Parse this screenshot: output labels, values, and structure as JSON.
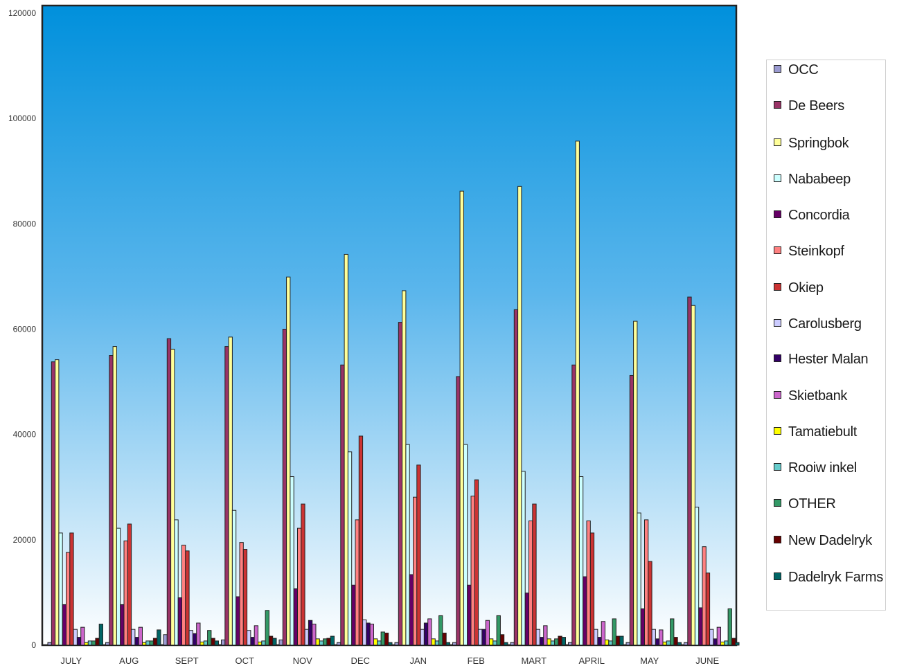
{
  "chart_data": {
    "type": "bar",
    "categories": [
      "JULY",
      "AUG",
      "SEPT",
      "OCT",
      "NOV",
      "DEC",
      "JAN",
      "FEB",
      "MART",
      "APRIL",
      "MAY",
      "JUNE"
    ],
    "ylim": [
      0,
      120000
    ],
    "yticks": [
      0,
      20000,
      40000,
      60000,
      80000,
      100000,
      120000
    ],
    "ytick_labels": [
      "0",
      "20000",
      "40000",
      "60000",
      "80000",
      "100000",
      "120000"
    ],
    "background": "blue-to-white vertical gradient",
    "legend_position": "right",
    "series": [
      {
        "name": "OCC",
        "color": "#9a9ad0",
        "values": [
          500,
          500,
          2000,
          1000,
          1000,
          500,
          500,
          500,
          500,
          500,
          500,
          500
        ]
      },
      {
        "name": "De Beers",
        "color": "#993366",
        "values": [
          53800,
          55000,
          58200,
          56700,
          60000,
          53200,
          61300,
          51000,
          63700,
          53200,
          51200,
          66100
        ]
      },
      {
        "name": "Springbok",
        "color": "#ffff99",
        "values": [
          54200,
          56700,
          56200,
          58500,
          69900,
          74200,
          67300,
          86200,
          87100,
          95700,
          61500,
          64500
        ]
      },
      {
        "name": "Nababeep",
        "color": "#ccffff",
        "values": [
          21300,
          22200,
          23800,
          25600,
          32000,
          36700,
          38100,
          38100,
          33000,
          32000,
          25100,
          26200
        ]
      },
      {
        "name": "Concordia",
        "color": "#660066",
        "values": [
          7700,
          7700,
          9000,
          9200,
          10700,
          11400,
          13400,
          11400,
          9900,
          13000,
          6900,
          7100
        ]
      },
      {
        "name": "Steinkopf",
        "color": "#ff8080",
        "values": [
          17600,
          19800,
          19000,
          19500,
          22200,
          23800,
          28100,
          28300,
          23600,
          23600,
          23800,
          18700
        ]
      },
      {
        "name": "Okiep",
        "color": "#cc3333",
        "values": [
          21300,
          23000,
          17900,
          18200,
          26800,
          39700,
          34200,
          31400,
          26800,
          21300,
          15900,
          13700
        ]
      },
      {
        "name": "Carolusberg",
        "color": "#ccccff",
        "values": [
          3000,
          3000,
          2800,
          2800,
          3000,
          4800,
          3000,
          3000,
          3000,
          3000,
          3000,
          3000
        ]
      },
      {
        "name": "Hester Malan",
        "color": "#330066",
        "values": [
          1500,
          1500,
          2200,
          1500,
          4700,
          4200,
          4200,
          3000,
          1500,
          1500,
          1200,
          1200
        ]
      },
      {
        "name": "Skietbank",
        "color": "#cc66cc",
        "values": [
          3400,
          3400,
          4200,
          3700,
          4000,
          4000,
          5000,
          4700,
          3700,
          4500,
          2900,
          3400
        ]
      },
      {
        "name": "Tamatiebult",
        "color": "#ffff00",
        "values": [
          500,
          500,
          600,
          600,
          1200,
          1200,
          1200,
          1200,
          1200,
          1000,
          600,
          600
        ]
      },
      {
        "name": "Rooiw inkel",
        "color": "#66cccc",
        "values": [
          800,
          800,
          800,
          800,
          800,
          800,
          800,
          800,
          800,
          800,
          800,
          800
        ]
      },
      {
        "name": "OTHER",
        "color": "#339966",
        "values": [
          800,
          800,
          2800,
          6600,
          1200,
          2500,
          5600,
          5600,
          1200,
          5000,
          5000,
          6900
        ]
      },
      {
        "name": "New Dadelryk",
        "color": "#660000",
        "values": [
          1300,
          1300,
          1300,
          1700,
          1300,
          2300,
          2300,
          2000,
          1700,
          1700,
          1500,
          1300
        ]
      },
      {
        "name": "Dadelryk Farms",
        "color": "#006666",
        "values": [
          4000,
          2900,
          800,
          1300,
          1700,
          500,
          500,
          500,
          1500,
          1700,
          500,
          500
        ]
      }
    ]
  },
  "legend": {
    "items": [
      {
        "label": "OCC"
      },
      {
        "label": "De Beers"
      },
      {
        "label": "Springbok"
      },
      {
        "label": "Nababeep"
      },
      {
        "label": "Concordia"
      },
      {
        "label": "Steinkopf"
      },
      {
        "label": "Okiep"
      },
      {
        "label": "Carolusberg"
      },
      {
        "label": "Hester Malan"
      },
      {
        "label": "Skietbank"
      },
      {
        "label": "Tamatiebult"
      },
      {
        "label": "Rooiw inkel"
      },
      {
        "label": "OTHER"
      },
      {
        "label": "New  Dadelryk"
      },
      {
        "label": "Dadelryk Farms"
      }
    ]
  }
}
